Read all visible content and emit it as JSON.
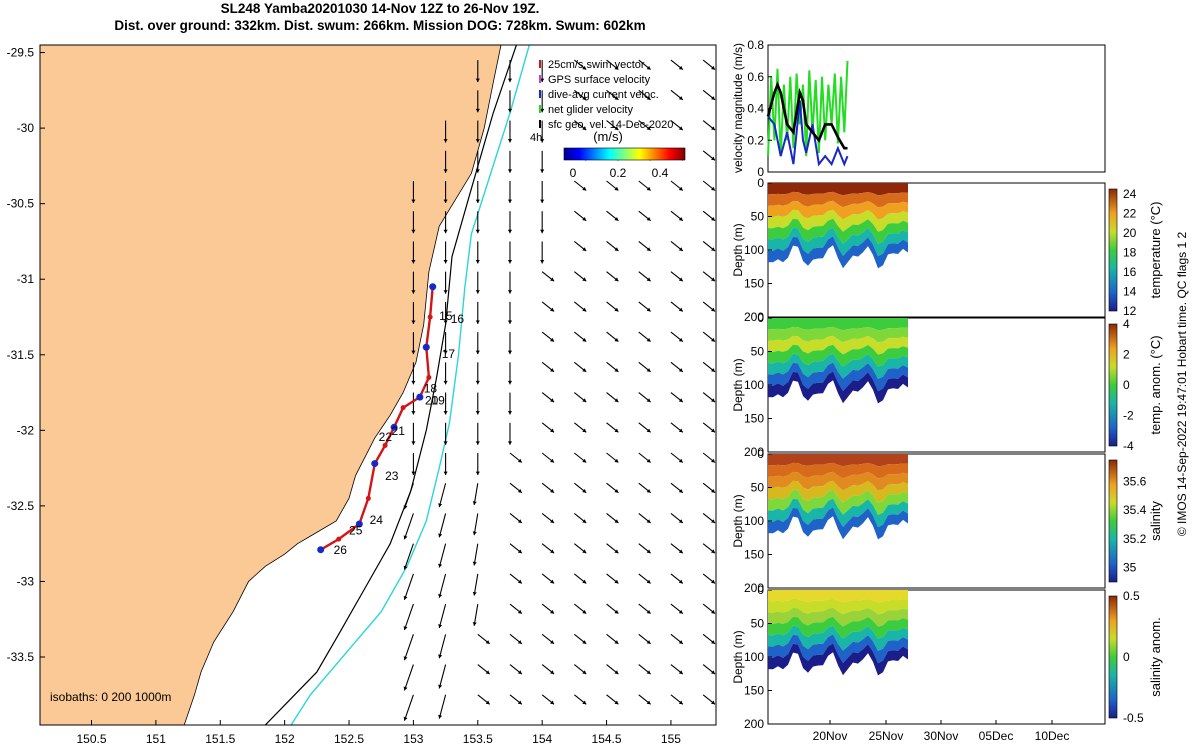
{
  "title": {
    "line1": "SL248 Yamba20201030 14-Nov 12Z to 26-Nov 19Z.",
    "line2": "Dist. over ground: 332km. Dist. swum: 266km. Mission DOG: 728km. Swum: 602km"
  },
  "colors": {
    "land": "#fbc996",
    "isobath_200": "#000000",
    "isobath_1000": "#2ad6d6",
    "track": "#d21616",
    "dive": "#1828c8",
    "green": "#22dd22"
  },
  "map": {
    "lon_range": [
      150.1,
      155.35
    ],
    "lat_range": [
      -33.95,
      -29.45
    ],
    "x_ticks": [
      "150.5",
      "151",
      "151.5",
      "152",
      "152.5",
      "153",
      "153.5",
      "154",
      "154.5",
      "155"
    ],
    "y_ticks": [
      "-29.5",
      "-30",
      "-30.5",
      "-31",
      "-31.5",
      "-32",
      "-32.5",
      "-33",
      "-33.5"
    ],
    "legend": [
      {
        "label": "25cm/s swim vector",
        "color": "#d21616"
      },
      {
        "label": "GPS surface velocity",
        "color": "#d040d0"
      },
      {
        "label": "dive-avg current veloc.",
        "color": "#1828c8"
      },
      {
        "label": "net glider velocity",
        "color": "#22dd22"
      },
      {
        "label": "sfc geo. vel. 14-Dec-2020",
        "color": "#000000"
      }
    ],
    "colorbar_title": "(m/s)",
    "colorbar_ticks": [
      "0",
      "0.2",
      "0.4"
    ],
    "isobaths_label": "isobaths: 0   200  1000m",
    "corner_label": "4h",
    "day_labels": [
      {
        "day": "15",
        "lon": 153.2,
        "lat": -31.27
      },
      {
        "day": "16",
        "lon": 153.29,
        "lat": -31.29
      },
      {
        "day": "17",
        "lon": 153.22,
        "lat": -31.52
      },
      {
        "day": "18",
        "lon": 153.08,
        "lat": -31.75
      },
      {
        "day": "19",
        "lon": 153.14,
        "lat": -31.83
      },
      {
        "day": "20",
        "lon": 153.09,
        "lat": -31.83
      },
      {
        "day": "21",
        "lon": 152.83,
        "lat": -32.03
      },
      {
        "day": "22",
        "lon": 152.73,
        "lat": -32.07
      },
      {
        "day": "23",
        "lon": 152.78,
        "lat": -32.33
      },
      {
        "day": "24",
        "lon": 152.66,
        "lat": -32.62
      },
      {
        "day": "25",
        "lon": 152.5,
        "lat": -32.69
      },
      {
        "day": "26",
        "lon": 152.38,
        "lat": -32.82
      }
    ],
    "glider_track": [
      [
        153.15,
        -31.05
      ],
      [
        153.13,
        -31.25
      ],
      [
        153.1,
        -31.45
      ],
      [
        153.12,
        -31.65
      ],
      [
        153.05,
        -31.78
      ],
      [
        152.92,
        -31.85
      ],
      [
        152.85,
        -31.98
      ],
      [
        152.78,
        -32.1
      ],
      [
        152.7,
        -32.22
      ],
      [
        152.65,
        -32.45
      ],
      [
        152.58,
        -32.62
      ],
      [
        152.42,
        -32.72
      ],
      [
        152.28,
        -32.79
      ]
    ]
  },
  "chart_data": [
    {
      "type": "line",
      "title": "",
      "ylabel": "velocity magnitude (m/s)",
      "ylim": [
        0,
        0.8
      ],
      "y_ticks": [
        "0",
        "0.2",
        "0.4",
        "0.6",
        "0.8"
      ],
      "x_range_days": [
        0,
        53
      ],
      "series": [
        {
          "name": "net glider velocity",
          "color": "#22dd22",
          "x": [
            0,
            0.5,
            1,
            1.5,
            2,
            2.5,
            3,
            3.5,
            4,
            4.5,
            5,
            5.5,
            6,
            6.5,
            7,
            7.5,
            8,
            8.5,
            9,
            9.5,
            10,
            10.5,
            11,
            11.5,
            12,
            12.5
          ],
          "values": [
            0.1,
            0.6,
            0.2,
            0.65,
            0.1,
            0.55,
            0.2,
            0.6,
            0.15,
            0.62,
            0.3,
            0.55,
            0.1,
            0.64,
            0.25,
            0.58,
            0.12,
            0.6,
            0.2,
            0.55,
            0.3,
            0.62,
            0.18,
            0.6,
            0.25,
            0.7
          ]
        },
        {
          "name": "dive-avg current veloc.",
          "color": "#1828c8",
          "x": [
            0,
            1,
            2,
            3,
            4,
            5,
            5.5,
            6,
            7,
            8,
            9,
            10,
            11,
            12,
            12.5
          ],
          "values": [
            0.35,
            0.3,
            0.1,
            0.25,
            0.05,
            0.45,
            0.2,
            0.12,
            0.3,
            0.05,
            0.1,
            0.05,
            0.15,
            0.05,
            0.1
          ]
        },
        {
          "name": "sfc geo. vel.",
          "color": "#000000",
          "x": [
            0,
            1,
            1.5,
            2,
            3,
            4,
            5,
            5.5,
            6,
            7,
            8,
            9,
            9.5,
            10,
            11,
            12,
            12.5
          ],
          "values": [
            0.35,
            0.5,
            0.55,
            0.5,
            0.3,
            0.25,
            0.5,
            0.45,
            0.3,
            0.25,
            0.2,
            0.3,
            0.3,
            0.3,
            0.22,
            0.15,
            0.15
          ]
        }
      ]
    },
    {
      "type": "heatmap",
      "ylabel": "Depth (m)",
      "ylim": [
        0,
        200
      ],
      "y_ticks": [
        "0",
        "50",
        "100",
        "150",
        "200"
      ],
      "colorbar_label": "temperature (°C)",
      "colorbar_ticks": [
        "24",
        "22",
        "20",
        "18",
        "16",
        "14",
        "12"
      ],
      "clim": [
        12,
        24.5
      ]
    },
    {
      "type": "heatmap",
      "ylabel": "Depth (m)",
      "ylim": [
        0,
        200
      ],
      "y_ticks": [
        "0",
        "50",
        "100",
        "150",
        "200"
      ],
      "colorbar_label": "temp. anom. (°C)",
      "colorbar_ticks": [
        "4",
        "2",
        "0",
        "-2",
        "-4"
      ],
      "clim": [
        -4,
        4
      ]
    },
    {
      "type": "heatmap",
      "ylabel": "Depth (m)",
      "ylim": [
        0,
        200
      ],
      "y_ticks": [
        "0",
        "50",
        "100",
        "150",
        "200"
      ],
      "colorbar_label": "salinity",
      "colorbar_ticks": [
        "35.6",
        "35.4",
        "35.2",
        "35"
      ],
      "clim": [
        34.9,
        35.75
      ]
    },
    {
      "type": "heatmap",
      "ylabel": "Depth (m)",
      "ylim": [
        0,
        200
      ],
      "y_ticks": [
        "0",
        "50",
        "100",
        "150",
        "200"
      ],
      "colorbar_label": "salinity anom.",
      "colorbar_ticks": [
        "0.5",
        "0",
        "-0.5"
      ],
      "clim": [
        -0.5,
        0.5
      ]
    }
  ],
  "time_axis": {
    "x_ticks": [
      "20Nov",
      "25Nov",
      "30Nov",
      "05Dec",
      "10Dec"
    ]
  },
  "side_note": "© IMOS 14-Sep-2022 19:47:01 Hobart time. QC flags 1  2"
}
